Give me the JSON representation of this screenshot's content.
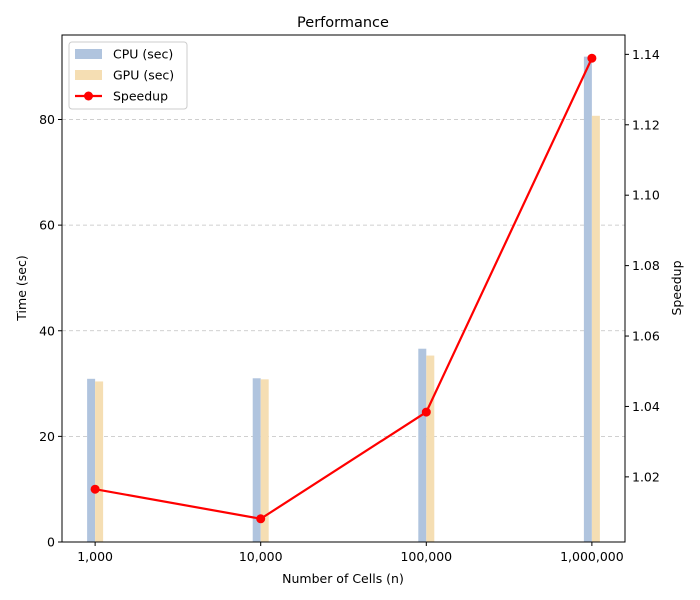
{
  "chart_data": {
    "type": "bar+line",
    "title": "Performance",
    "xlabel": "Number of Cells (n)",
    "ylabel_left": "Time (sec)",
    "ylabel_right": "Speedup",
    "categories": [
      "1,000",
      "10,000",
      "100,000",
      "1,000,000"
    ],
    "x_scale": "log",
    "x_values": [
      1000,
      10000,
      100000,
      1000000
    ],
    "ylim_left": [
      0,
      96
    ],
    "ylim_right": [
      1.0015,
      1.1455
    ],
    "left_ticks": [
      0,
      20,
      40,
      60,
      80
    ],
    "right_ticks": [
      "1.02",
      "1.04",
      "1.06",
      "1.08",
      "1.10",
      "1.12",
      "1.14"
    ],
    "right_tick_values": [
      1.02,
      1.04,
      1.06,
      1.08,
      1.1,
      1.12,
      1.14
    ],
    "grid": "horizontal dashed (left axis)",
    "legend_position": "top-left",
    "series": [
      {
        "name": "CPU (sec)",
        "kind": "bar",
        "axis": "left",
        "color": "#b0c4de",
        "values": [
          30.9,
          31.0,
          36.6,
          91.9
        ]
      },
      {
        "name": "GPU (sec)",
        "kind": "bar",
        "axis": "left",
        "color": "#f5deb3",
        "values": [
          30.4,
          30.8,
          35.3,
          80.7
        ]
      },
      {
        "name": "Speedup",
        "kind": "line",
        "axis": "right",
        "color": "#ff0000",
        "values": [
          1.0165,
          1.0081,
          1.0384,
          1.1389
        ]
      }
    ]
  }
}
